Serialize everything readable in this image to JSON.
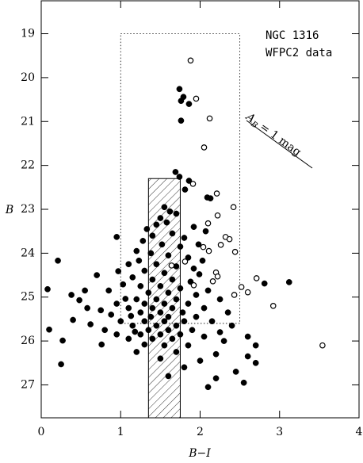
{
  "chart_data": {
    "type": "scatter",
    "annotations": [
      "NGC 1316",
      "WFPC2 data"
    ],
    "reddening_label": {
      "main": "A",
      "sub": "B",
      "text": "= 1 mag"
    },
    "xlabel": "B−I",
    "ylabel": "B",
    "xlim": [
      0,
      4
    ],
    "ylim": [
      18.25,
      27.75
    ],
    "y_reversed": true,
    "xticks": [
      0,
      1,
      2,
      3,
      4
    ],
    "yticks": [
      19,
      20,
      21,
      22,
      23,
      24,
      25,
      26,
      27
    ],
    "dotted_box": {
      "x": [
        1,
        2.5
      ],
      "y": [
        19,
        25.6
      ]
    },
    "hatched_box": {
      "x": [
        1.35,
        1.75
      ],
      "y": [
        22.3,
        27.75
      ]
    },
    "series": [
      {
        "marker": "filled",
        "color": "#000000",
        "x": [
          1.74,
          1.79,
          1.76,
          1.86,
          1.76,
          1.69,
          1.74,
          1.86,
          1.81,
          2.09,
          2.13,
          1.55,
          1.62,
          1.7,
          1.5,
          1.58,
          1.45,
          1.92,
          2.07,
          1.33,
          1.4,
          1.65,
          1.8,
          0.95,
          1.28,
          1.52,
          1.75,
          1.98,
          1.2,
          1.38,
          1.6,
          1.85,
          2.03,
          1.23,
          0.21,
          1.1,
          1.45,
          1.7,
          1.92,
          0.97,
          1.3,
          1.55,
          1.99,
          0.7,
          1.15,
          1.4,
          1.65,
          1.88,
          2.81,
          3.12,
          1.03,
          1.25,
          1.5,
          1.75,
          0.08,
          0.55,
          0.85,
          2.1,
          1.35,
          1.6,
          1.95,
          0.38,
          1.06,
          0.48,
          1.2,
          1.45,
          1.7,
          2.25,
          0.95,
          1.3,
          1.55,
          1.85,
          0.58,
          1.1,
          1.4,
          1.65,
          2.05,
          0.75,
          1.25,
          1.5,
          1.78,
          2.35,
          0.88,
          1.13,
          1.38,
          1.6,
          1.95,
          0.4,
          1.0,
          1.3,
          1.55,
          1.8,
          2.15,
          0.62,
          1.15,
          1.45,
          1.7,
          2.4,
          0.1,
          0.8,
          1.18,
          1.35,
          1.6,
          1.9,
          2.25,
          0.95,
          1.25,
          1.5,
          1.75,
          2.05,
          2.6,
          0.27,
          1.1,
          1.4,
          1.65,
          2.3,
          0.76,
          1.3,
          1.55,
          1.85,
          2.7,
          1.2,
          1.7,
          2.2,
          2.6,
          1.5,
          2.0,
          2.7,
          0.25,
          1.8,
          2.45,
          2.2,
          2.1,
          2.55,
          1.6
        ],
        "y": [
          20.26,
          20.44,
          20.53,
          20.6,
          20.98,
          22.15,
          22.26,
          22.35,
          22.55,
          22.73,
          22.75,
          22.95,
          23.05,
          23.1,
          23.2,
          23.3,
          23.35,
          23.4,
          23.5,
          23.45,
          23.6,
          23.55,
          23.65,
          23.63,
          23.72,
          23.8,
          23.85,
          23.8,
          23.95,
          24.0,
          24.05,
          24.1,
          24.17,
          24.17,
          24.17,
          24.25,
          24.25,
          24.3,
          24.35,
          24.41,
          24.4,
          24.45,
          24.48,
          24.5,
          24.55,
          24.6,
          24.6,
          24.65,
          24.69,
          24.66,
          24.71,
          24.75,
          24.75,
          24.8,
          24.82,
          24.85,
          24.85,
          24.85,
          24.9,
          24.9,
          24.95,
          24.95,
          25.04,
          25.07,
          25.05,
          25.05,
          25.05,
          25.05,
          25.15,
          25.15,
          25.15,
          25.15,
          25.25,
          25.25,
          25.25,
          25.25,
          25.25,
          25.3,
          25.35,
          25.35,
          25.35,
          25.35,
          25.4,
          25.43,
          25.45,
          25.45,
          25.45,
          25.52,
          25.55,
          25.55,
          25.55,
          25.55,
          25.55,
          25.62,
          25.65,
          25.65,
          25.65,
          25.65,
          25.74,
          25.75,
          25.79,
          25.75,
          25.75,
          25.75,
          25.8,
          25.85,
          25.85,
          25.85,
          25.85,
          25.9,
          25.9,
          25.99,
          25.95,
          25.95,
          25.95,
          26.0,
          26.08,
          26.08,
          26.1,
          26.1,
          26.1,
          26.25,
          26.25,
          26.3,
          26.35,
          26.4,
          26.45,
          26.5,
          26.53,
          26.6,
          26.7,
          26.85,
          27.05,
          26.95,
          26.8
        ]
      },
      {
        "marker": "open",
        "color": "#000000",
        "x": [
          1.88,
          1.95,
          2.12,
          2.05,
          1.91,
          2.21,
          2.22,
          2.42,
          2.1,
          2.32,
          2.37,
          2.26,
          2.04,
          2.11,
          2.44,
          2.2,
          2.22,
          2.16,
          1.92,
          2.71,
          2.52,
          2.6,
          2.43,
          2.92,
          3.54,
          1.64,
          1.81
        ],
        "y": [
          19.61,
          20.48,
          20.93,
          21.59,
          22.42,
          22.64,
          23.14,
          22.95,
          23.32,
          23.63,
          23.68,
          23.81,
          23.86,
          23.95,
          23.97,
          24.44,
          24.53,
          24.64,
          24.73,
          24.57,
          24.77,
          24.89,
          24.95,
          25.2,
          26.1,
          24.28,
          24.19
        ]
      }
    ]
  }
}
